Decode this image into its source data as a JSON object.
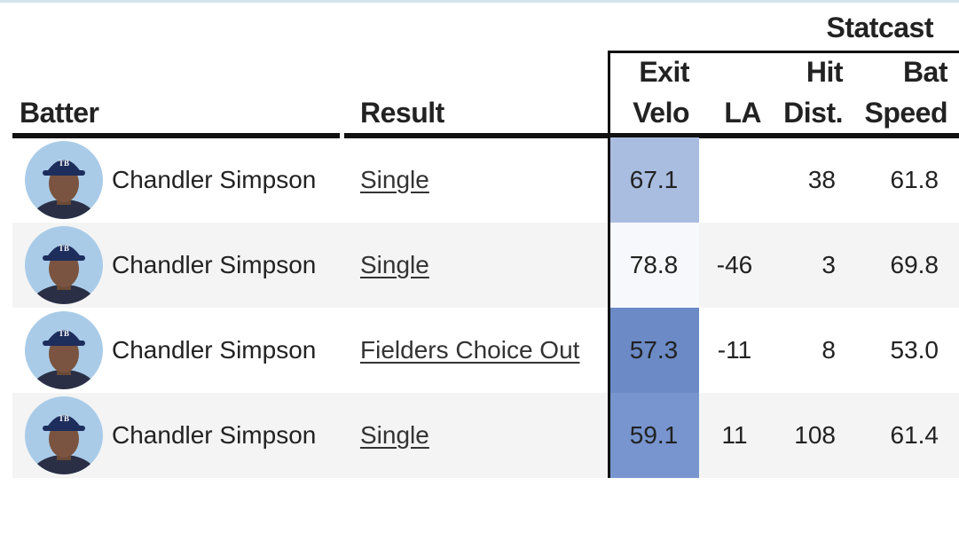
{
  "header": {
    "group": "Statcast",
    "columns": [
      "Batter",
      "Result",
      "Exit Velo",
      "LA",
      "Hit Dist.",
      "Bat Speed"
    ]
  },
  "table": {
    "rows": [
      {
        "batter": "Chandler Simpson",
        "result": "Single",
        "exit_velo": "67.1",
        "exit_velo_color": "#a9bde0",
        "la": null,
        "hit_dist": "38",
        "bat_speed": "61.8"
      },
      {
        "batter": "Chandler Simpson",
        "result": "Single",
        "exit_velo": "78.8",
        "exit_velo_color": "#f7f8fc",
        "la": "-46",
        "hit_dist": "3",
        "bat_speed": "69.8"
      },
      {
        "batter": "Chandler Simpson",
        "result": "Fielders Choice Out",
        "exit_velo": "57.3",
        "exit_velo_color": "#6b8ac6",
        "la": "-11",
        "hit_dist": "8",
        "bat_speed": "53.0"
      },
      {
        "batter": "Chandler Simpson",
        "result": "Single",
        "exit_velo": "59.1",
        "exit_velo_color": "#7895cf",
        "la": "11",
        "hit_dist": "108",
        "bat_speed": "61.4"
      }
    ]
  }
}
